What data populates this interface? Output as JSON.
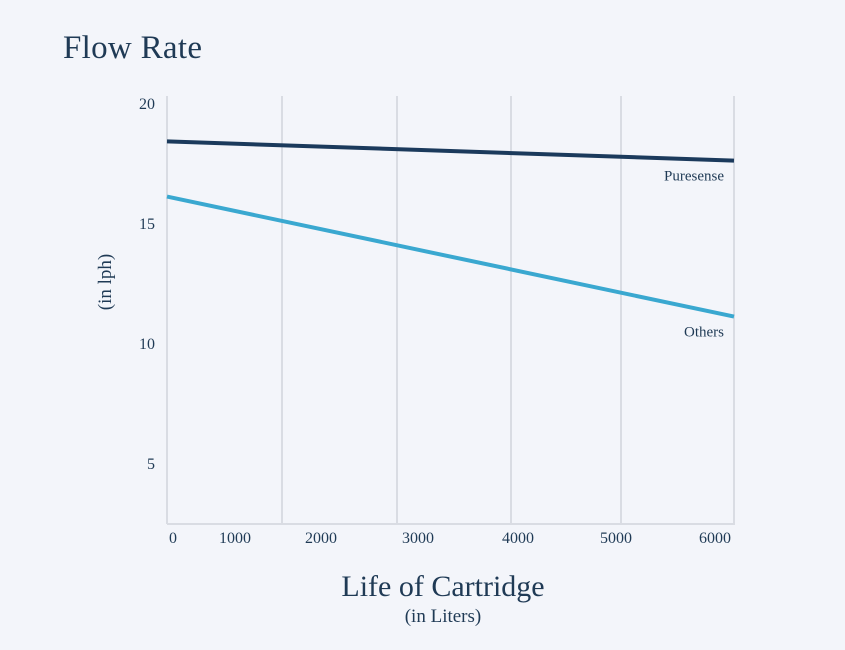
{
  "chart_data": {
    "type": "line",
    "title": "Flow Rate",
    "xlabel": "Life of Cartridge",
    "xlabel_sub": "(in Liters)",
    "ylabel": "(in lph)",
    "x_ticks": [
      "0",
      "1000",
      "2000",
      "3000",
      "4000",
      "5000",
      "6000"
    ],
    "y_ticks": [
      "20",
      "15",
      "10",
      "5"
    ],
    "xlim": [
      0,
      6000
    ],
    "ylim": [
      2.5,
      20.3
    ],
    "grid": "vertical",
    "series": [
      {
        "name": "Puresense",
        "color": "#1b3a5c",
        "x": [
          0,
          6000
        ],
        "values": [
          18.4,
          17.6
        ]
      },
      {
        "name": "Others",
        "color": "#3aa8d0",
        "x": [
          0,
          6000
        ],
        "values": [
          16.1,
          11.1
        ]
      }
    ]
  }
}
